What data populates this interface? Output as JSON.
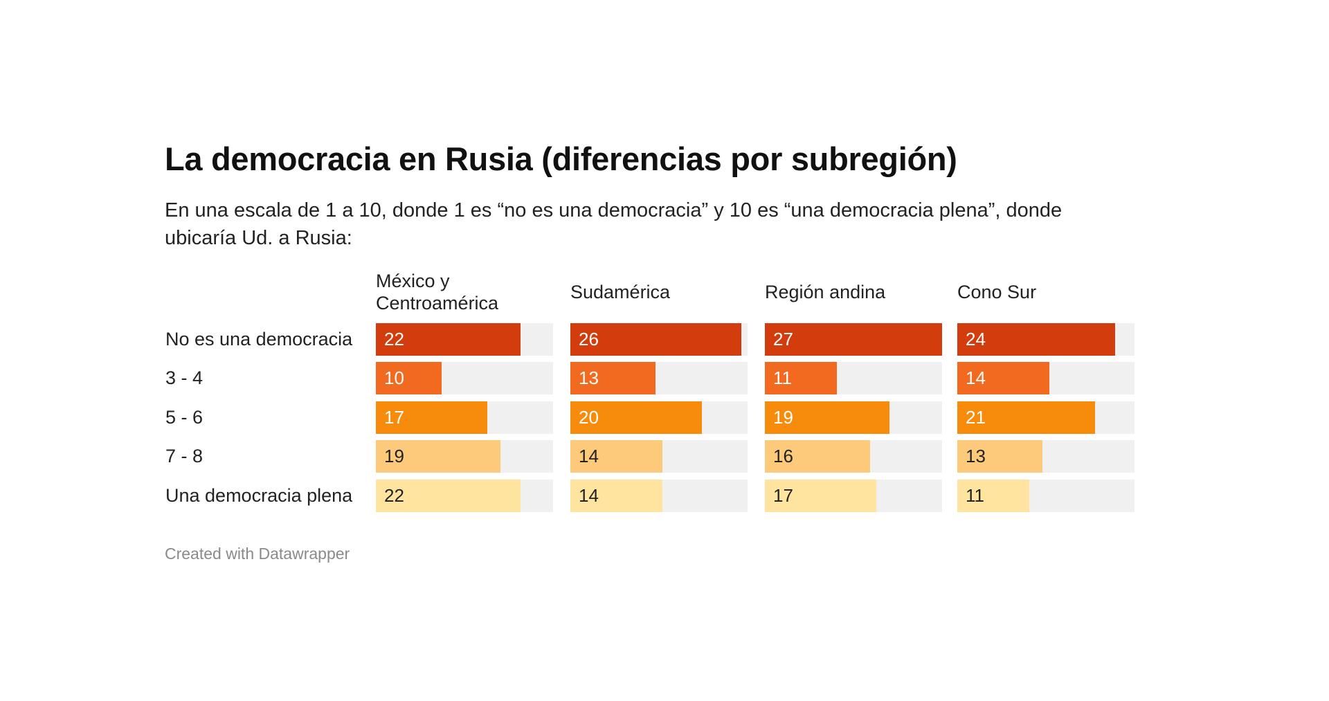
{
  "chart_data": {
    "type": "bar",
    "title": "La democracia en Rusia (diferencias por subregión)",
    "subtitle": "En una escala de 1 a 10, donde 1 es “no es una democracia” y 10 es “una democracia plena”, donde ubicaría Ud. a Rusia:",
    "categories": [
      "No es una democracia",
      "3 - 4",
      "5 - 6",
      "7 - 8",
      "Una democracia plena"
    ],
    "series": [
      {
        "name": "México y Centroamérica",
        "values": [
          22,
          10,
          17,
          19,
          22
        ]
      },
      {
        "name": "Sudamérica",
        "values": [
          26,
          13,
          20,
          14,
          14
        ]
      },
      {
        "name": "Región andina",
        "values": [
          27,
          11,
          19,
          16,
          17
        ]
      },
      {
        "name": "Cono Sur",
        "values": [
          24,
          14,
          21,
          13,
          11
        ]
      }
    ],
    "xlim": [
      0,
      27
    ],
    "row_colors": [
      "#d33d0d",
      "#f26a20",
      "#f78b0c",
      "#fdc97a",
      "#fee49f"
    ],
    "label_colors": [
      "#ffffff",
      "#ffffff",
      "#ffffff",
      "#222222",
      "#222222"
    ],
    "track_color": "#f0f0f0",
    "footer": "Created with Datawrapper"
  }
}
